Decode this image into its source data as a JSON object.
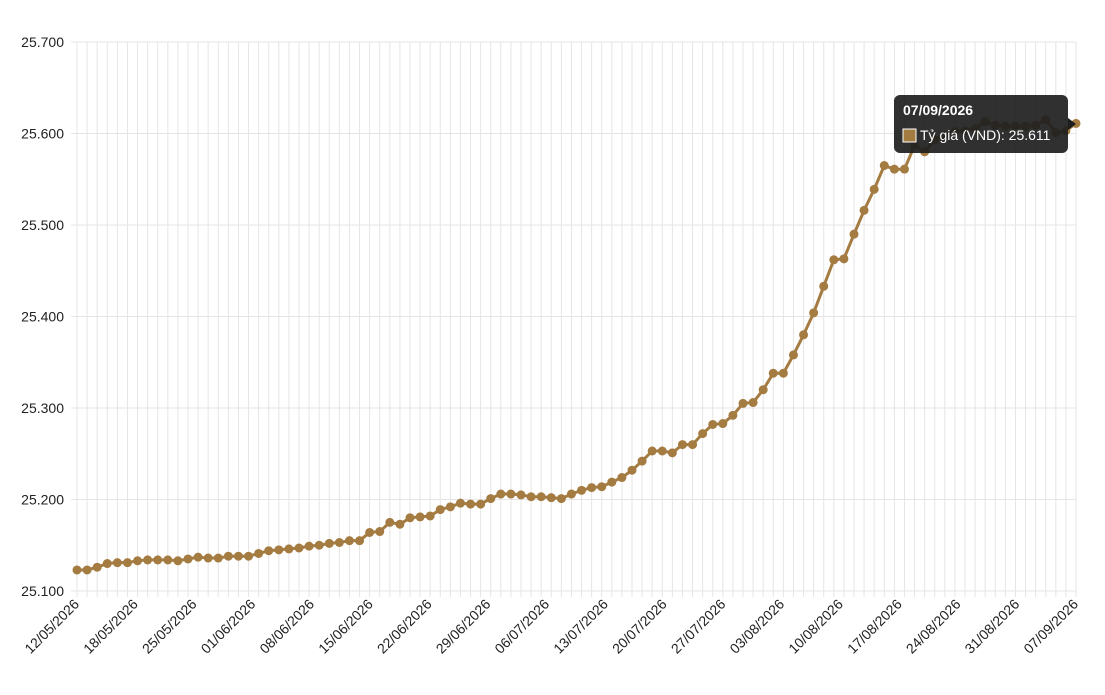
{
  "chart_data": {
    "type": "line",
    "title": "",
    "xlabel": "",
    "ylabel": "",
    "ylim": [
      25100,
      25700
    ],
    "y_ticks": [
      "25.100",
      "25.200",
      "25.300",
      "25.400",
      "25.500",
      "25.600",
      "25.700"
    ],
    "y_tick_values": [
      25100,
      25200,
      25300,
      25400,
      25500,
      25600,
      25700
    ],
    "x_tick_labels": [
      "12/05/2026",
      "18/05/2026",
      "25/05/2026",
      "01/06/2026",
      "08/06/2026",
      "15/06/2026",
      "22/06/2026",
      "29/06/2026",
      "06/07/2026",
      "13/07/2026",
      "20/07/2026",
      "27/07/2026",
      "03/08/2026",
      "10/08/2026",
      "17/08/2026",
      "24/08/2026",
      "31/08/2026",
      "07/09/2026"
    ],
    "grid": true,
    "colors": {
      "line": "#a47c42",
      "point": "#a47c42",
      "grid": "#e5e5e5",
      "tooltip_bg": "#1e1e1e"
    },
    "series": [
      {
        "name": "Tỷ giá (VND)",
        "values": [
          25123,
          25123,
          25126,
          25130,
          25131,
          25131,
          25133,
          25134,
          25134,
          25134,
          25133,
          25135,
          25137,
          25136,
          25136,
          25138,
          25138,
          25138,
          25141,
          25144,
          25145,
          25146,
          25147,
          25149,
          25150,
          25152,
          25153,
          25155,
          25155,
          25164,
          25165,
          25175,
          25173,
          25180,
          25181,
          25182,
          25189,
          25192,
          25196,
          25195,
          25195,
          25201,
          25206,
          25206,
          25205,
          25203,
          25203,
          25202,
          25201,
          25206,
          25210,
          25213,
          25214,
          25219,
          25224,
          25232,
          25242,
          25253,
          25253,
          25251,
          25260,
          25260,
          25272,
          25282,
          25283,
          25292,
          25305,
          25306,
          25320,
          25338,
          25338,
          25358,
          25380,
          25404,
          25433,
          25462,
          25463,
          25490,
          25516,
          25539,
          25565,
          25561,
          25561,
          25587,
          25580,
          25593,
          25598,
          25602,
          25603,
          25605,
          25613,
          25609,
          25608,
          25608,
          25608,
          25609,
          25615,
          25601,
          25603,
          25611
        ]
      }
    ]
  },
  "tooltip": {
    "date": "07/09/2026",
    "series_label": "Tỷ giá (VND)",
    "value": "25.611",
    "text": "Tỷ giá (VND): 25.611"
  }
}
